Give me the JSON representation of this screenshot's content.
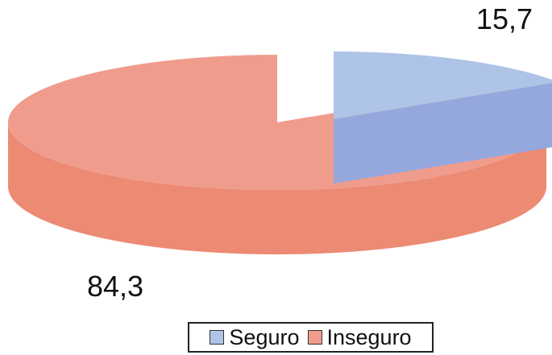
{
  "chart_data": {
    "type": "pie",
    "style": "3d-exploded",
    "categories": [
      "Seguro",
      "Inseguro"
    ],
    "values": [
      15.7,
      84.3
    ],
    "data_labels": [
      "15,7",
      "84,3"
    ],
    "colors": {
      "Seguro": {
        "top": "#aec4e6",
        "side": "#94a8de"
      },
      "Inseguro": {
        "top": "#f09c8c",
        "side": "#ec8a74"
      }
    },
    "legend": {
      "position": "bottom",
      "items": [
        {
          "label": "Seguro",
          "color": "#aec4e6"
        },
        {
          "label": "Inseguro",
          "color": "#f09c8c"
        }
      ]
    }
  }
}
